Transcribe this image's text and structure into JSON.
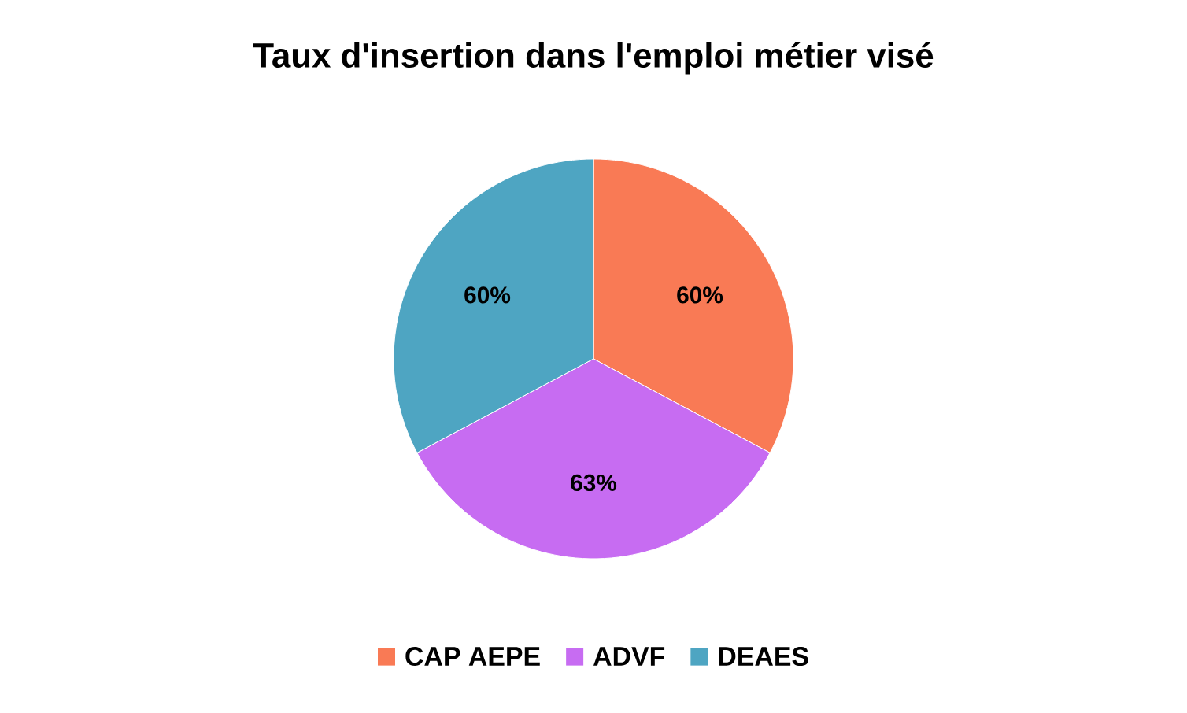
{
  "chart_data": {
    "type": "pie",
    "title": "Taux d'insertion dans l'emploi métier visé",
    "categories": [
      "CAP AEPE",
      "ADVF",
      "DEAES"
    ],
    "values": [
      60,
      63,
      60
    ],
    "value_labels": [
      "60%",
      "63%",
      "60%"
    ],
    "colors": [
      "#f97a55",
      "#c76cf2",
      "#4ea5c2"
    ],
    "legend": "bottom"
  }
}
